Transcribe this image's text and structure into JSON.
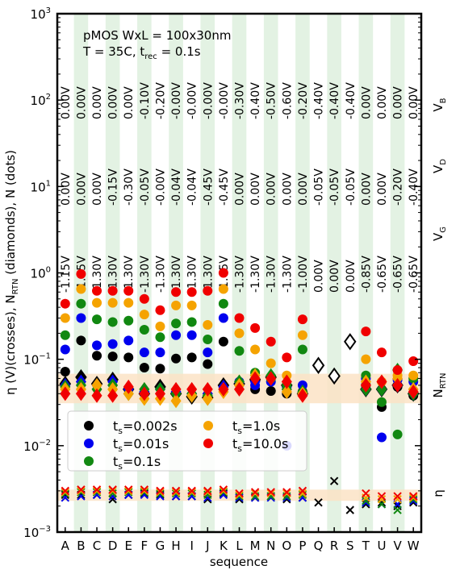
{
  "chart_data": {
    "type": "scatter",
    "title": "pMOS WxL = 100x30nm",
    "subtitle": "T = 35C, t_rec = 0.1s",
    "xlabel": "sequence",
    "ylabel_parts": [
      "η (V)(crosses), N",
      "RTN",
      " (diamonds), N (dots)"
    ],
    "yscale": "log",
    "ylim": [
      0.001,
      1000
    ],
    "ytick_labels": [
      {
        "base": "10",
        "exp": "−3"
      },
      {
        "base": "10",
        "exp": "−2"
      },
      {
        "base": "10",
        "exp": "−1"
      },
      {
        "base": "10",
        "exp": "0"
      },
      {
        "base": "10",
        "exp": "1"
      },
      {
        "base": "10",
        "exp": "2"
      },
      {
        "base": "10",
        "exp": "3"
      }
    ],
    "categories": [
      "A",
      "B",
      "C",
      "D",
      "E",
      "F",
      "G",
      "H",
      "I",
      "J",
      "K",
      "L",
      "M",
      "N",
      "O",
      "P",
      "Q",
      "R",
      "S",
      "T",
      "U",
      "V",
      "W"
    ],
    "shaded_categories": [
      "B",
      "D",
      "F",
      "H",
      "J",
      "L",
      "N",
      "P",
      "R",
      "T",
      "V"
    ],
    "bias_rows": [
      {
        "label": "V",
        "sub": "B",
        "values": [
          "0.00V",
          "0.00V",
          "0.00V",
          "0.00V",
          "0.00V",
          "-0.10V",
          "-0.20V",
          "-0.00V",
          "-0.00V",
          "-0.00V",
          "-0.00V",
          "-0.30V",
          "-0.40V",
          "-0.50V",
          "-0.60V",
          "-0.20V",
          "-0.40V",
          "-0.40V",
          "-0.40V",
          "0.00V",
          "0.00V",
          "0.00V",
          "0.00V"
        ]
      },
      {
        "label": "V",
        "sub": "D",
        "values": [
          "0.00V",
          "0.00V",
          "0.00V",
          "-0.15V",
          "-0.30V",
          "-0.05V",
          "-0.00V",
          "-0.04V",
          "-0.04V",
          "-0.45V",
          "-0.45V",
          "0.00V",
          "0.00V",
          "0.00V",
          "0.00V",
          "0.00V",
          "-0.05V",
          "-0.05V",
          "-0.05V",
          "0.00V",
          "0.00V",
          "-0.20V",
          "-0.40V"
        ]
      },
      {
        "label": "V",
        "sub": "G",
        "values": [
          "-1.15V",
          "-1.45V",
          "-1.30V",
          "-1.30V",
          "-1.30V",
          "-1.30V",
          "-1.30V",
          "-1.30V",
          "-1.30V",
          "-1.30V",
          "-1.45V",
          "-1.30V",
          "-1.30V",
          "-1.30V",
          "-1.30V",
          "-1.00V",
          "0.00V",
          "0.00V",
          "0.00V",
          "-0.85V",
          "-0.65V",
          "-0.65V",
          "-0.65V"
        ]
      }
    ],
    "band_labels": [
      {
        "label": "N",
        "sub": "RTN"
      },
      {
        "label": "η",
        "sub": ""
      }
    ],
    "bands": [
      {
        "name": "N_RTN band",
        "ylim": [
          0.031,
          0.068
        ],
        "color": "#fbe3c6"
      },
      {
        "name": "eta band",
        "ylim": [
          0.0023,
          0.0031
        ],
        "color": "#fbe3c6"
      }
    ],
    "legend": {
      "placement": "lower-left",
      "entries": [
        {
          "label": "t",
          "sub": "s",
          "value": "=0.002s",
          "color": "#000000"
        },
        {
          "label": "t",
          "sub": "s",
          "value": "=1.0s",
          "color": "#f5a300"
        },
        {
          "label": "t",
          "sub": "s",
          "value": "=0.01s",
          "color": "#0000ee"
        },
        {
          "label": "t",
          "sub": "s",
          "value": "=10.0s",
          "color": "#f00000"
        },
        {
          "label": "t",
          "sub": "s",
          "value": "=0.1s",
          "color": "#118811"
        }
      ]
    },
    "series": [
      {
        "name": "t_s=0.002s",
        "color": "#000000",
        "N": [
          0.072,
          0.165,
          0.11,
          0.108,
          0.105,
          0.08,
          0.078,
          0.102,
          0.105,
          0.088,
          0.16,
          0.052,
          0.045,
          0.043,
          0.04,
          0.042,
          null,
          null,
          null,
          0.05,
          0.028,
          0.048,
          0.038
        ],
        "N_RTN": [
          0.052,
          0.062,
          0.052,
          0.058,
          0.045,
          0.04,
          0.048,
          0.04,
          0.037,
          0.036,
          0.05,
          0.052,
          0.058,
          0.062,
          0.05,
          0.04,
          0.085,
          0.064,
          0.16,
          0.045,
          0.045,
          0.05,
          0.04
        ],
        "eta": [
          0.0027,
          0.0027,
          0.0027,
          0.0024,
          0.0027,
          0.0028,
          0.0027,
          0.0026,
          0.0026,
          0.0024,
          0.0028,
          0.0024,
          0.0025,
          0.0026,
          0.0024,
          0.0025,
          0.0022,
          0.0039,
          0.0018,
          0.0021,
          0.0022,
          0.002,
          0.0022
        ]
      },
      {
        "name": "t_s=0.01s",
        "color": "#0000ee",
        "N": [
          0.13,
          0.3,
          0.145,
          0.15,
          0.165,
          0.12,
          0.12,
          0.19,
          0.19,
          0.12,
          0.3,
          0.055,
          0.05,
          0.055,
          0.01,
          0.05,
          null,
          null,
          null,
          0.06,
          0.0125,
          0.058,
          0.055
        ],
        "N_RTN": [
          0.05,
          0.055,
          0.05,
          0.055,
          0.045,
          0.042,
          0.045,
          0.042,
          0.04,
          0.04,
          0.048,
          0.05,
          0.055,
          0.06,
          0.048,
          0.04,
          null,
          null,
          null,
          0.045,
          0.045,
          0.05,
          0.04
        ],
        "eta": [
          0.0025,
          0.0026,
          0.0027,
          0.0026,
          0.0027,
          0.0027,
          0.0026,
          0.0026,
          0.0026,
          0.0025,
          0.0027,
          0.0025,
          0.0025,
          0.0025,
          0.0025,
          0.0025,
          null,
          null,
          null,
          0.0022,
          0.0021,
          0.0021,
          0.0023
        ]
      },
      {
        "name": "t_s=0.1s",
        "color": "#118811",
        "N": [
          0.19,
          0.44,
          0.29,
          0.27,
          0.28,
          0.22,
          0.18,
          0.26,
          0.27,
          0.17,
          0.44,
          0.125,
          0.07,
          0.06,
          0.05,
          0.13,
          null,
          null,
          null,
          0.065,
          0.032,
          0.0135,
          0.06
        ],
        "N_RTN": [
          0.048,
          0.05,
          0.045,
          0.05,
          0.04,
          0.045,
          0.045,
          0.04,
          0.04,
          0.038,
          0.045,
          0.055,
          0.06,
          0.065,
          0.045,
          0.042,
          null,
          null,
          null,
          0.045,
          0.045,
          0.075,
          0.04
        ],
        "eta": [
          0.0028,
          0.0029,
          0.0029,
          0.0028,
          0.0029,
          0.0029,
          0.0028,
          0.0028,
          0.0028,
          0.0027,
          0.0029,
          0.0026,
          0.0026,
          0.0026,
          0.0026,
          0.0027,
          null,
          null,
          null,
          0.0023,
          0.0021,
          0.0018,
          0.0024
        ]
      },
      {
        "name": "t_s=1.0s",
        "color": "#f5a300",
        "N": [
          0.3,
          0.65,
          0.45,
          0.45,
          0.45,
          0.33,
          0.24,
          0.42,
          0.42,
          0.25,
          0.65,
          0.2,
          0.13,
          0.09,
          0.065,
          0.19,
          null,
          null,
          null,
          0.1,
          0.055,
          0.065,
          0.065
        ],
        "N_RTN": [
          0.045,
          0.045,
          0.05,
          0.045,
          0.04,
          0.035,
          0.035,
          0.033,
          0.038,
          0.035,
          0.042,
          0.05,
          0.065,
          0.06,
          0.042,
          0.04,
          null,
          null,
          null,
          0.055,
          0.055,
          0.06,
          0.045
        ],
        "eta": [
          0.0029,
          0.003,
          0.003,
          0.003,
          0.003,
          0.003,
          0.0029,
          0.0029,
          0.0029,
          0.0029,
          0.003,
          0.0027,
          0.0028,
          0.0028,
          0.0028,
          0.0028,
          null,
          null,
          null,
          0.0025,
          0.0024,
          0.0024,
          0.0025
        ]
      },
      {
        "name": "t_s=10.0s",
        "color": "#f00000",
        "N": [
          0.44,
          0.97,
          0.62,
          0.62,
          0.62,
          0.5,
          0.37,
          0.6,
          0.6,
          0.62,
          1.0,
          0.3,
          0.23,
          0.16,
          0.105,
          0.29,
          null,
          null,
          null,
          0.21,
          0.12,
          0.075,
          0.095
        ],
        "N_RTN": [
          0.04,
          0.04,
          0.038,
          0.038,
          0.048,
          0.04,
          0.04,
          0.045,
          0.045,
          0.045,
          0.045,
          0.045,
          0.06,
          0.06,
          0.055,
          0.038,
          null,
          null,
          null,
          0.05,
          0.055,
          0.05,
          0.042
        ],
        "eta": [
          0.003,
          0.0031,
          0.0031,
          0.0031,
          0.0031,
          0.0031,
          0.003,
          0.003,
          0.003,
          0.003,
          0.0031,
          0.0028,
          0.0029,
          0.0029,
          0.0029,
          0.003,
          null,
          null,
          null,
          0.0028,
          0.0026,
          0.0026,
          0.0026
        ]
      }
    ]
  }
}
